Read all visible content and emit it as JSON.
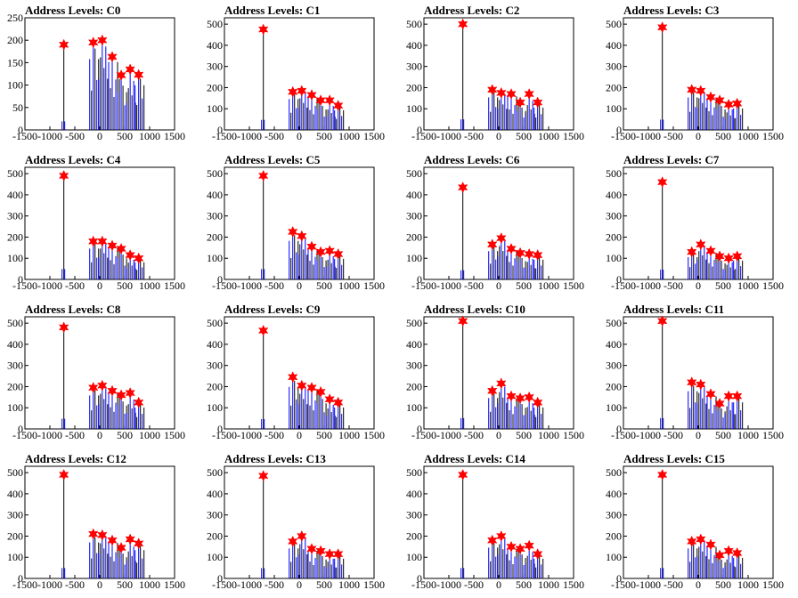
{
  "chart_data": [
    {
      "type": "bar",
      "title": "Address Levels: C0",
      "xlim": [
        -1500,
        1500
      ],
      "ylim": [
        0,
        250
      ],
      "yticks": [
        0,
        50,
        100,
        150,
        200,
        250
      ],
      "xticks": [
        -1500,
        -1000,
        -500,
        0,
        500,
        1000,
        1500
      ],
      "peaks": [
        {
          "x": -720,
          "y": 190
        },
        {
          "x": -130,
          "y": 195
        },
        {
          "x": 50,
          "y": 200
        },
        {
          "x": 250,
          "y": 163
        },
        {
          "x": 430,
          "y": 122
        },
        {
          "x": 610,
          "y": 135
        },
        {
          "x": 780,
          "y": 123
        }
      ]
    },
    {
      "type": "bar",
      "title": "Address Levels: C1",
      "xlim": [
        -1500,
        1500
      ],
      "ylim": [
        0,
        530
      ],
      "yticks": [
        0,
        100,
        200,
        300,
        400,
        500
      ],
      "xticks": [
        -1500,
        -1000,
        -500,
        0,
        500,
        1000,
        1500
      ],
      "peaks": [
        {
          "x": -720,
          "y": 475
        },
        {
          "x": -130,
          "y": 180
        },
        {
          "x": 50,
          "y": 185
        },
        {
          "x": 250,
          "y": 165
        },
        {
          "x": 430,
          "y": 140
        },
        {
          "x": 610,
          "y": 140
        },
        {
          "x": 780,
          "y": 115
        }
      ]
    },
    {
      "type": "bar",
      "title": "Address Levels: C2",
      "xlim": [
        -1500,
        1500
      ],
      "ylim": [
        0,
        530
      ],
      "yticks": [
        0,
        100,
        200,
        300,
        400,
        500
      ],
      "xticks": [
        -1500,
        -1000,
        -500,
        0,
        500,
        1000,
        1500
      ],
      "peaks": [
        {
          "x": -720,
          "y": 500
        },
        {
          "x": -130,
          "y": 190
        },
        {
          "x": 50,
          "y": 175
        },
        {
          "x": 250,
          "y": 170
        },
        {
          "x": 430,
          "y": 130
        },
        {
          "x": 610,
          "y": 170
        },
        {
          "x": 780,
          "y": 130
        }
      ]
    },
    {
      "type": "bar",
      "title": "Address Levels: C3",
      "xlim": [
        -1500,
        1500
      ],
      "ylim": [
        0,
        530
      ],
      "yticks": [
        0,
        100,
        200,
        300,
        400,
        500
      ],
      "xticks": [
        -1500,
        -1000,
        -500,
        0,
        500,
        1000,
        1500
      ],
      "peaks": [
        {
          "x": -720,
          "y": 485
        },
        {
          "x": -130,
          "y": 190
        },
        {
          "x": 50,
          "y": 185
        },
        {
          "x": 250,
          "y": 155
        },
        {
          "x": 430,
          "y": 140
        },
        {
          "x": 610,
          "y": 120
        },
        {
          "x": 780,
          "y": 125
        }
      ]
    },
    {
      "type": "bar",
      "title": "Address Levels: C4",
      "xlim": [
        -1500,
        1500
      ],
      "ylim": [
        0,
        530
      ],
      "yticks": [
        0,
        100,
        200,
        300,
        400,
        500
      ],
      "xticks": [
        -1500,
        -1000,
        -500,
        0,
        500,
        1000,
        1500
      ],
      "peaks": [
        {
          "x": -720,
          "y": 490
        },
        {
          "x": -130,
          "y": 180
        },
        {
          "x": 50,
          "y": 180
        },
        {
          "x": 250,
          "y": 160
        },
        {
          "x": 430,
          "y": 145
        },
        {
          "x": 610,
          "y": 115
        },
        {
          "x": 780,
          "y": 100
        }
      ]
    },
    {
      "type": "bar",
      "title": "Address Levels: C5",
      "xlim": [
        -1500,
        1500
      ],
      "ylim": [
        0,
        530
      ],
      "yticks": [
        0,
        100,
        200,
        300,
        400,
        500
      ],
      "xticks": [
        -1500,
        -1000,
        -500,
        0,
        500,
        1000,
        1500
      ],
      "peaks": [
        {
          "x": -720,
          "y": 490
        },
        {
          "x": -130,
          "y": 225
        },
        {
          "x": 50,
          "y": 205
        },
        {
          "x": 250,
          "y": 155
        },
        {
          "x": 430,
          "y": 130
        },
        {
          "x": 610,
          "y": 135
        },
        {
          "x": 780,
          "y": 120
        }
      ]
    },
    {
      "type": "bar",
      "title": "Address Levels: C6",
      "xlim": [
        -1500,
        1500
      ],
      "ylim": [
        0,
        530
      ],
      "yticks": [
        0,
        100,
        200,
        300,
        400,
        500
      ],
      "xticks": [
        -1500,
        -1000,
        -500,
        0,
        500,
        1000,
        1500
      ],
      "peaks": [
        {
          "x": -720,
          "y": 435
        },
        {
          "x": -130,
          "y": 165
        },
        {
          "x": 50,
          "y": 195
        },
        {
          "x": 250,
          "y": 145
        },
        {
          "x": 430,
          "y": 125
        },
        {
          "x": 610,
          "y": 120
        },
        {
          "x": 780,
          "y": 115
        }
      ]
    },
    {
      "type": "bar",
      "title": "Address Levels: C7",
      "xlim": [
        -1500,
        1500
      ],
      "ylim": [
        0,
        530
      ],
      "yticks": [
        0,
        100,
        200,
        300,
        400,
        500
      ],
      "xticks": [
        -1500,
        -1000,
        -500,
        0,
        500,
        1000,
        1500
      ],
      "peaks": [
        {
          "x": -720,
          "y": 460
        },
        {
          "x": -130,
          "y": 130
        },
        {
          "x": 50,
          "y": 165
        },
        {
          "x": 250,
          "y": 135
        },
        {
          "x": 430,
          "y": 110
        },
        {
          "x": 610,
          "y": 100
        },
        {
          "x": 780,
          "y": 110
        }
      ]
    },
    {
      "type": "bar",
      "title": "Address Levels: C8",
      "xlim": [
        -1500,
        1500
      ],
      "ylim": [
        0,
        530
      ],
      "yticks": [
        0,
        100,
        200,
        300,
        400,
        500
      ],
      "xticks": [
        -1500,
        -1000,
        -500,
        0,
        500,
        1000,
        1500
      ],
      "peaks": [
        {
          "x": -720,
          "y": 480
        },
        {
          "x": -130,
          "y": 195
        },
        {
          "x": 50,
          "y": 205
        },
        {
          "x": 250,
          "y": 180
        },
        {
          "x": 430,
          "y": 160
        },
        {
          "x": 610,
          "y": 170
        },
        {
          "x": 780,
          "y": 125
        }
      ]
    },
    {
      "type": "bar",
      "title": "Address Levels: C9",
      "xlim": [
        -1500,
        1500
      ],
      "ylim": [
        0,
        530
      ],
      "yticks": [
        0,
        100,
        200,
        300,
        400,
        500
      ],
      "xticks": [
        -1500,
        -1000,
        -500,
        0,
        500,
        1000,
        1500
      ],
      "peaks": [
        {
          "x": -720,
          "y": 465
        },
        {
          "x": -130,
          "y": 245
        },
        {
          "x": 50,
          "y": 205
        },
        {
          "x": 250,
          "y": 195
        },
        {
          "x": 430,
          "y": 175
        },
        {
          "x": 610,
          "y": 140
        },
        {
          "x": 780,
          "y": 125
        }
      ]
    },
    {
      "type": "bar",
      "title": "Address Levels: C10",
      "xlim": [
        -1500,
        1500
      ],
      "ylim": [
        0,
        530
      ],
      "yticks": [
        0,
        100,
        200,
        300,
        400,
        500
      ],
      "xticks": [
        -1500,
        -1000,
        -500,
        0,
        500,
        1000,
        1500
      ],
      "peaks": [
        {
          "x": -720,
          "y": 510
        },
        {
          "x": -130,
          "y": 180
        },
        {
          "x": 50,
          "y": 215
        },
        {
          "x": 250,
          "y": 155
        },
        {
          "x": 430,
          "y": 145
        },
        {
          "x": 610,
          "y": 150
        },
        {
          "x": 780,
          "y": 125
        }
      ]
    },
    {
      "type": "bar",
      "title": "Address Levels: C11",
      "xlim": [
        -1500,
        1500
      ],
      "ylim": [
        0,
        530
      ],
      "yticks": [
        0,
        100,
        200,
        300,
        400,
        500
      ],
      "xticks": [
        -1500,
        -1000,
        -500,
        0,
        500,
        1000,
        1500
      ],
      "peaks": [
        {
          "x": -720,
          "y": 510
        },
        {
          "x": -130,
          "y": 220
        },
        {
          "x": 50,
          "y": 210
        },
        {
          "x": 250,
          "y": 165
        },
        {
          "x": 430,
          "y": 120
        },
        {
          "x": 610,
          "y": 155
        },
        {
          "x": 780,
          "y": 155
        }
      ]
    },
    {
      "type": "bar",
      "title": "Address Levels: C12",
      "xlim": [
        -1500,
        1500
      ],
      "ylim": [
        0,
        530
      ],
      "yticks": [
        0,
        100,
        200,
        300,
        400,
        500
      ],
      "xticks": [
        -1500,
        -1000,
        -500,
        0,
        500,
        1000,
        1500
      ],
      "peaks": [
        {
          "x": -720,
          "y": 490
        },
        {
          "x": -130,
          "y": 210
        },
        {
          "x": 50,
          "y": 205
        },
        {
          "x": 250,
          "y": 180
        },
        {
          "x": 430,
          "y": 145
        },
        {
          "x": 610,
          "y": 185
        },
        {
          "x": 780,
          "y": 165
        }
      ]
    },
    {
      "type": "bar",
      "title": "Address Levels: C13",
      "xlim": [
        -1500,
        1500
      ],
      "ylim": [
        0,
        530
      ],
      "yticks": [
        0,
        100,
        200,
        300,
        400,
        500
      ],
      "xticks": [
        -1500,
        -1000,
        -500,
        0,
        500,
        1000,
        1500
      ],
      "peaks": [
        {
          "x": -720,
          "y": 485
        },
        {
          "x": -130,
          "y": 175
        },
        {
          "x": 50,
          "y": 200
        },
        {
          "x": 250,
          "y": 140
        },
        {
          "x": 430,
          "y": 130
        },
        {
          "x": 610,
          "y": 115
        },
        {
          "x": 780,
          "y": 115
        }
      ]
    },
    {
      "type": "bar",
      "title": "Address Levels: C14",
      "xlim": [
        -1500,
        1500
      ],
      "ylim": [
        0,
        530
      ],
      "yticks": [
        0,
        100,
        200,
        300,
        400,
        500
      ],
      "xticks": [
        -1500,
        -1000,
        -500,
        0,
        500,
        1000,
        1500
      ],
      "peaks": [
        {
          "x": -720,
          "y": 490
        },
        {
          "x": -130,
          "y": 180
        },
        {
          "x": 50,
          "y": 200
        },
        {
          "x": 250,
          "y": 150
        },
        {
          "x": 430,
          "y": 140
        },
        {
          "x": 610,
          "y": 155
        },
        {
          "x": 780,
          "y": 115
        }
      ]
    },
    {
      "type": "bar",
      "title": "Address Levels: C15",
      "xlim": [
        -1500,
        1500
      ],
      "ylim": [
        0,
        530
      ],
      "yticks": [
        0,
        100,
        200,
        300,
        400,
        500
      ],
      "xticks": [
        -1500,
        -1000,
        -500,
        0,
        500,
        1000,
        1500
      ],
      "peaks": [
        {
          "x": -720,
          "y": 490
        },
        {
          "x": -130,
          "y": 175
        },
        {
          "x": 50,
          "y": 185
        },
        {
          "x": 250,
          "y": 160
        },
        {
          "x": 430,
          "y": 110
        },
        {
          "x": 610,
          "y": 130
        },
        {
          "x": 780,
          "y": 120
        }
      ]
    }
  ],
  "colors": {
    "bar": "#0000ff",
    "black_bar": "#000000",
    "marker": "#ff0000",
    "axis": "#000000"
  }
}
